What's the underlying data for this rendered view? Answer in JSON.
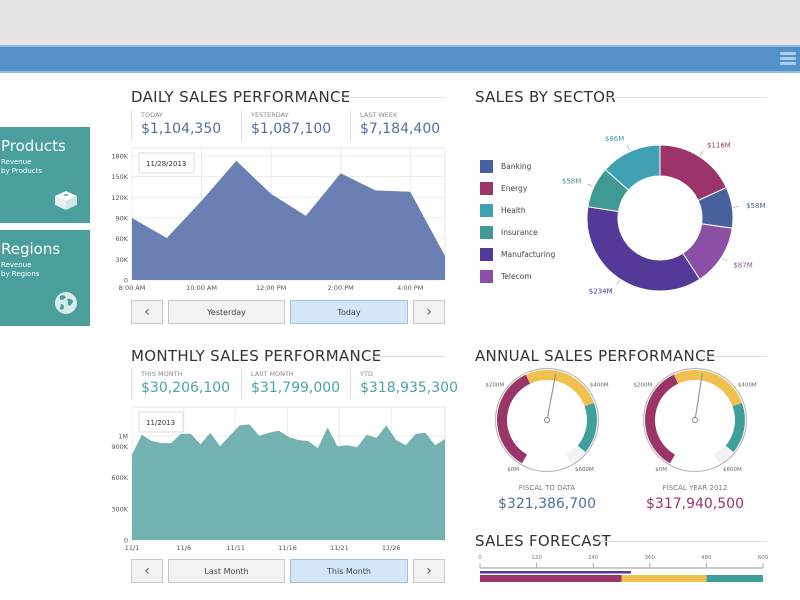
{
  "header": {
    "menu_icon": "hamburger-menu-icon"
  },
  "sidebar": {
    "tiles": [
      {
        "title": "Products",
        "sub1": "Revenue",
        "sub2": "by Products",
        "icon": "box-icon",
        "color": "#4a9f9c"
      },
      {
        "title": "Regions",
        "sub1": "Revenue",
        "sub2": "by Regions",
        "icon": "globe-icon",
        "color": "#4a9f9c"
      }
    ]
  },
  "daily": {
    "title": "DAILY SALES PERFORMANCE",
    "kpis": [
      {
        "label": "TODAY",
        "value": "$1,104,350"
      },
      {
        "label": "YESTERDAY",
        "value": "$1,087,100"
      },
      {
        "label": "LAST WEEK",
        "value": "$7,184,400"
      }
    ],
    "nav": {
      "prev": "‹",
      "next": "›",
      "btn1": "Yesterday",
      "btn2": "Today",
      "active": "Today"
    }
  },
  "monthly": {
    "title": "MONTHLY SALES PERFORMANCE",
    "kpis": [
      {
        "label": "THIS MONTH",
        "value": "$30,206,100"
      },
      {
        "label": "LAST MONTH",
        "value": "$31,799,000"
      },
      {
        "label": "YTD",
        "value": "$318,935,300"
      }
    ],
    "nav": {
      "prev": "‹",
      "next": "›",
      "btn1": "Last Month",
      "btn2": "This Month",
      "active": "This Month"
    }
  },
  "sector": {
    "title": "SALES BY SECTOR"
  },
  "annual": {
    "title": "ANNUAL SALES PERFORMANCE",
    "gauges": [
      {
        "caption": "FISCAL TO DATA",
        "value": "$321,386,700",
        "value_color": "#4f6fa8"
      },
      {
        "caption": "FISCAL YEAR 2012",
        "value": "$317,940,500",
        "value_color": "#a0336a"
      }
    ]
  },
  "forecast": {
    "title": "SALES FORECAST"
  },
  "chart_data": [
    {
      "id": "daily",
      "type": "area",
      "title": "DAILY SALES PERFORMANCE",
      "annotation": "11/28/2013",
      "x": [
        "8:00 AM",
        "9:00 AM",
        "10:00 AM",
        "11:00 AM",
        "12:00 PM",
        "1:00 PM",
        "2:00 PM",
        "3:00 PM",
        "4:00 PM",
        "5:00 PM"
      ],
      "xticks": [
        "8:00 AM",
        "10:00 AM",
        "12:00 PM",
        "2:00 PM",
        "4:00 PM"
      ],
      "values": [
        90000,
        61000,
        115000,
        173000,
        125000,
        93000,
        155000,
        130000,
        128000,
        35000
      ],
      "yticks": [
        "0",
        "30K",
        "60K",
        "90K",
        "120K",
        "150K",
        "180K"
      ],
      "ylim": [
        0,
        180000
      ],
      "color": "#6b80b2",
      "grid": true
    },
    {
      "id": "monthly",
      "type": "area",
      "title": "MONTHLY SALES PERFORMANCE",
      "annotation": "11/2013",
      "xticks": [
        "11/1",
        "11/6",
        "11/11",
        "11/16",
        "11/21",
        "11/26"
      ],
      "values": [
        820000,
        1010000,
        950000,
        930000,
        930000,
        1020000,
        1020000,
        920000,
        1030000,
        900000,
        1000000,
        1100000,
        1110000,
        1000000,
        1030000,
        1050000,
        990000,
        960000,
        950000,
        880000,
        1080000,
        900000,
        910000,
        890000,
        1010000,
        980000,
        1100000,
        960000,
        910000,
        1020000,
        1030000,
        910000,
        970000
      ],
      "yticks": [
        "0",
        "300K",
        "600K",
        "900K",
        "1M"
      ],
      "ylim": [
        0,
        1200000
      ],
      "color": "#73b2b1",
      "grid": true
    },
    {
      "id": "sector",
      "type": "pie",
      "title": "SALES BY SECTOR",
      "legend": "left",
      "slices": [
        {
          "name": "Energy",
          "value": 116,
          "label": "$116M",
          "color": "#9b3468"
        },
        {
          "name": "Banking",
          "value": 58,
          "label": "$58M",
          "color": "#46619e"
        },
        {
          "name": "Telecom",
          "value": 87,
          "label": "$87M",
          "color": "#8b50a5"
        },
        {
          "name": "Manufacturing",
          "value": 234,
          "label": "$234M",
          "color": "#543a98"
        },
        {
          "name": "Insurance",
          "value": 58,
          "label": "$58M",
          "color": "#3f9a93"
        },
        {
          "name": "Health",
          "value": 86,
          "label": "$86M",
          "color": "#3fa1b2"
        }
      ],
      "legend_order": [
        "Banking",
        "Energy",
        "Health",
        "Insurance",
        "Manufacturing",
        "Telecom"
      ]
    },
    {
      "id": "gauges",
      "type": "gauge",
      "ticks": [
        "$0M",
        "$200M",
        "$400M",
        "$600M"
      ],
      "range": [
        0,
        600
      ],
      "bands": [
        {
          "from": 0,
          "to": 250,
          "color": "#9b3468"
        },
        {
          "from": 250,
          "to": 440,
          "color": "#f0c050"
        },
        {
          "from": 440,
          "to": 560,
          "color": "#3f9f9c"
        },
        {
          "from": 560,
          "to": 600,
          "color": "#f4f4f4"
        }
      ],
      "values": [
        321.39,
        317.94
      ]
    },
    {
      "id": "forecast",
      "type": "bar",
      "title": "SALES FORECAST",
      "xticks": [
        "0",
        "120",
        "240",
        "360",
        "480",
        "600"
      ],
      "range": [
        0,
        600
      ],
      "actual": 320,
      "actual_color": "#543a98",
      "bands": [
        {
          "from": 0,
          "to": 300,
          "color": "#9b3468"
        },
        {
          "from": 300,
          "to": 480,
          "color": "#f0c050"
        },
        {
          "from": 480,
          "to": 600,
          "color": "#3f9f9c"
        }
      ]
    }
  ]
}
